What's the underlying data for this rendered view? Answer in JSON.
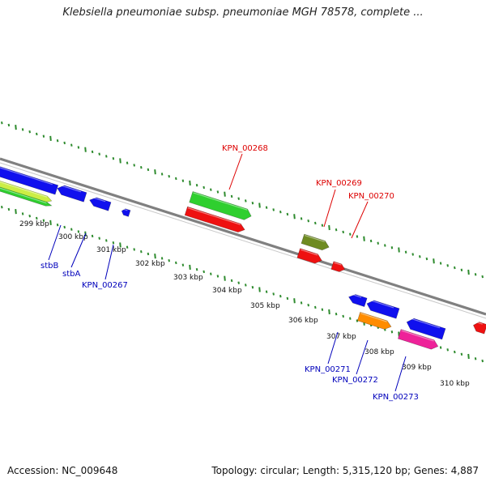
{
  "title": "Klebsiella pneumoniae subsp. pneumoniae MGH 78578, complete ...",
  "footer": {
    "accession": "Accession: NC_009648",
    "topology": "Topology: circular; Length: 5,315,120 bp; Genes: 4,887"
  },
  "colors": {
    "backbone": "#808080",
    "ticks": "#2e8b2e",
    "forward_label": "#dd0000",
    "reverse_label": "#0000bb"
  },
  "ticks": [
    "299 kbp",
    "300 kbp",
    "301 kbp",
    "302 kbp",
    "303 kbp",
    "304 kbp",
    "305 kbp",
    "306 kbp",
    "307 kbp",
    "308 kbp",
    "309 kbp",
    "310 kbp"
  ],
  "gene_labels": [
    {
      "text": "KPN_00268",
      "strand": "forward"
    },
    {
      "text": "KPN_00269",
      "strand": "forward"
    },
    {
      "text": "KPN_00270",
      "strand": "forward"
    },
    {
      "text": "stbB",
      "strand": "reverse"
    },
    {
      "text": "stbA",
      "strand": "reverse"
    },
    {
      "text": "KPN_00267",
      "strand": "reverse"
    },
    {
      "text": "KPN_00271",
      "strand": "reverse"
    },
    {
      "text": "KPN_00272",
      "strand": "reverse"
    },
    {
      "text": "KPN_00273",
      "strand": "reverse"
    }
  ],
  "features": [
    {
      "color": "#1010ee",
      "name": "blue-feature"
    },
    {
      "color": "#2fcf2f",
      "name": "green-feature"
    },
    {
      "color": "#ee1111",
      "name": "red-feature"
    },
    {
      "color": "#6e8b22",
      "name": "olive-feature"
    },
    {
      "color": "#ff8c00",
      "name": "orange-feature"
    },
    {
      "color": "#ee2299",
      "name": "pink-feature"
    },
    {
      "color": "#ccee44",
      "name": "lime-feature"
    }
  ]
}
